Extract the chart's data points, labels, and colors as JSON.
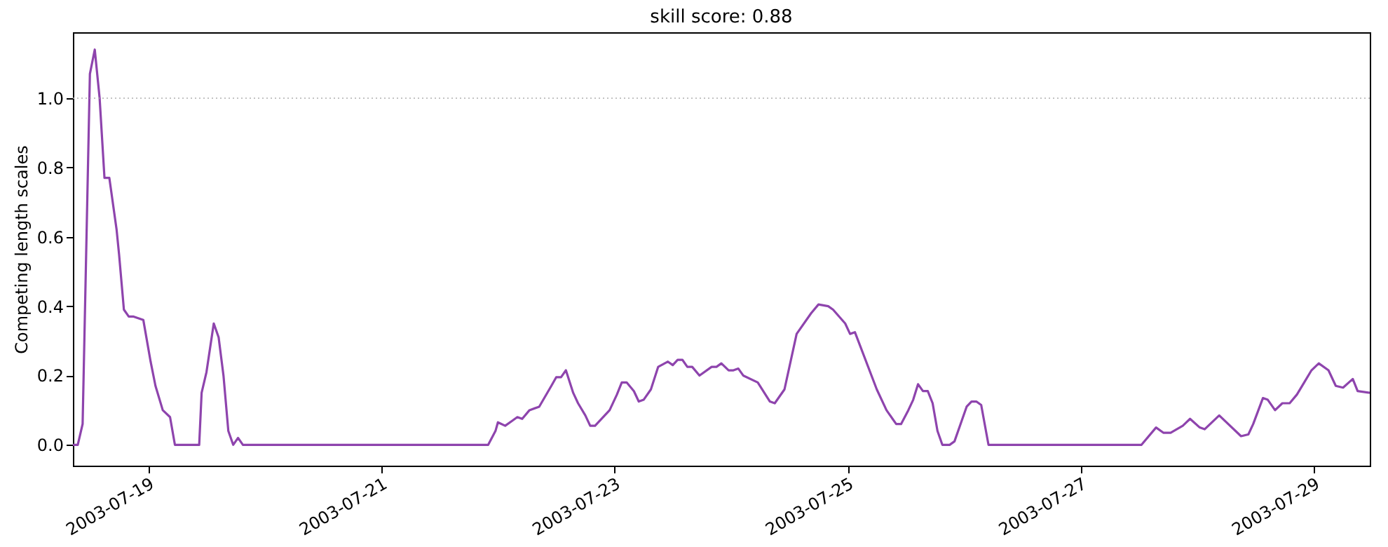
{
  "chart_data": {
    "type": "line",
    "title": "skill score: 0.88",
    "ylabel": "Competing length scales",
    "x": [
      "2003-07-18T08:30",
      "2003-07-18T09:30",
      "2003-07-18T10:30",
      "2003-07-18T12:00",
      "2003-07-18T13:00",
      "2003-07-18T14:00",
      "2003-07-18T15:00",
      "2003-07-18T16:00",
      "2003-07-18T17:30",
      "2003-07-18T18:00",
      "2003-07-18T19:00",
      "2003-07-18T20:00",
      "2003-07-18T21:00",
      "2003-07-18T23:00",
      "2003-07-19T00:30",
      "2003-07-19T01:30",
      "2003-07-19T03:00",
      "2003-07-19T04:30",
      "2003-07-19T05:30",
      "2003-07-19T10:30",
      "2003-07-19T11:00",
      "2003-07-19T12:00",
      "2003-07-19T13:30",
      "2003-07-19T14:30",
      "2003-07-19T15:30",
      "2003-07-19T16:30",
      "2003-07-19T17:30",
      "2003-07-19T18:30",
      "2003-07-19T19:30",
      "2003-07-21T22:00",
      "2003-07-21T23:30",
      "2003-07-22T00:00",
      "2003-07-22T01:30",
      "2003-07-22T03:00",
      "2003-07-22T04:00",
      "2003-07-22T05:00",
      "2003-07-22T06:30",
      "2003-07-22T08:30",
      "2003-07-22T11:00",
      "2003-07-22T12:00",
      "2003-07-22T13:00",
      "2003-07-22T14:00",
      "2003-07-22T15:30",
      "2003-07-22T16:30",
      "2003-07-22T18:00",
      "2003-07-22T19:00",
      "2003-07-22T20:00",
      "2003-07-22T23:00",
      "2003-07-23T00:30",
      "2003-07-23T01:30",
      "2003-07-23T02:30",
      "2003-07-23T04:00",
      "2003-07-23T05:00",
      "2003-07-23T06:00",
      "2003-07-23T07:30",
      "2003-07-23T09:00",
      "2003-07-23T11:00",
      "2003-07-23T12:00",
      "2003-07-23T13:00",
      "2003-07-23T14:00",
      "2003-07-23T15:00",
      "2003-07-23T16:00",
      "2003-07-23T17:30",
      "2003-07-23T20:00",
      "2003-07-23T21:00",
      "2003-07-23T22:00",
      "2003-07-23T23:30",
      "2003-07-24T00:30",
      "2003-07-24T01:30",
      "2003-07-24T02:30",
      "2003-07-24T05:30",
      "2003-07-24T08:00",
      "2003-07-24T09:00",
      "2003-07-24T11:00",
      "2003-07-24T13:30",
      "2003-07-24T16:30",
      "2003-07-24T18:00",
      "2003-07-24T20:00",
      "2003-07-24T21:00",
      "2003-07-24T23:30",
      "2003-07-25T00:30",
      "2003-07-25T01:30",
      "2003-07-25T06:00",
      "2003-07-25T08:00",
      "2003-07-25T10:00",
      "2003-07-25T11:00",
      "2003-07-25T12:30",
      "2003-07-25T13:30",
      "2003-07-25T14:30",
      "2003-07-25T15:30",
      "2003-07-25T16:30",
      "2003-07-25T17:30",
      "2003-07-25T18:30",
      "2003-07-25T19:30",
      "2003-07-25T21:00",
      "2003-07-25T22:00",
      "2003-07-25T23:30",
      "2003-07-26T00:30",
      "2003-07-26T01:30",
      "2003-07-26T02:30",
      "2003-07-26T03:30",
      "2003-07-26T05:00",
      "2003-07-27T12:30",
      "2003-07-27T15:30",
      "2003-07-27T17:00",
      "2003-07-27T18:30",
      "2003-07-27T21:00",
      "2003-07-27T22:30",
      "2003-07-28T00:30",
      "2003-07-28T01:30",
      "2003-07-28T04:30",
      "2003-07-28T09:00",
      "2003-07-28T10:30",
      "2003-07-28T11:30",
      "2003-07-28T13:30",
      "2003-07-28T14:30",
      "2003-07-28T16:00",
      "2003-07-28T17:30",
      "2003-07-28T19:00",
      "2003-07-28T20:30",
      "2003-07-28T22:00",
      "2003-07-28T23:30",
      "2003-07-29T01:00",
      "2003-07-29T03:00",
      "2003-07-29T04:30",
      "2003-07-29T06:00",
      "2003-07-29T08:00",
      "2003-07-29T09:00",
      "2003-07-29T11:30"
    ],
    "series": [
      {
        "color": "#8e44ad",
        "values": [
          0,
          0,
          0.06,
          1.07,
          1.14,
          1.0,
          0.77,
          0.77,
          0.62,
          0.55,
          0.39,
          0.37,
          0.37,
          0.36,
          0.24,
          0.17,
          0.1,
          0.08,
          0,
          0,
          0.15,
          0.21,
          0.35,
          0.31,
          0.2,
          0.04,
          0,
          0.02,
          0,
          0,
          0.04,
          0.065,
          0.055,
          0.07,
          0.08,
          0.075,
          0.1,
          0.11,
          0.17,
          0.195,
          0.195,
          0.215,
          0.15,
          0.12,
          0.085,
          0.055,
          0.055,
          0.1,
          0.145,
          0.18,
          0.18,
          0.155,
          0.125,
          0.13,
          0.16,
          0.225,
          0.24,
          0.23,
          0.245,
          0.245,
          0.225,
          0.225,
          0.2,
          0.225,
          0.225,
          0.235,
          0.215,
          0.215,
          0.22,
          0.2,
          0.18,
          0.125,
          0.12,
          0.16,
          0.32,
          0.38,
          0.405,
          0.4,
          0.39,
          0.35,
          0.32,
          0.325,
          0.16,
          0.1,
          0.06,
          0.06,
          0.1,
          0.13,
          0.175,
          0.155,
          0.155,
          0.12,
          0.04,
          0,
          0,
          0.01,
          0.07,
          0.11,
          0.125,
          0.125,
          0.115,
          0,
          0,
          0.05,
          0.035,
          0.035,
          0.055,
          0.075,
          0.05,
          0.045,
          0.085,
          0.025,
          0.03,
          0.06,
          0.135,
          0.13,
          0.1,
          0.12,
          0.12,
          0.145,
          0.18,
          0.215,
          0.235,
          0.215,
          0.17,
          0.165,
          0.19,
          0.155,
          0.15
        ]
      }
    ],
    "xlim": [
      "2003-07-18T08:30",
      "2003-07-29T11:30"
    ],
    "xticks": [
      "2003-07-19",
      "2003-07-21",
      "2003-07-23",
      "2003-07-25",
      "2003-07-27",
      "2003-07-29"
    ],
    "ylim": [
      -0.06,
      1.19
    ],
    "yticks": [
      {
        "value": 0,
        "label": "0.0"
      },
      {
        "value": 0.2,
        "label": "0.2"
      },
      {
        "value": 0.4,
        "label": "0.4"
      },
      {
        "value": 0.6,
        "label": "0.6"
      },
      {
        "value": 0.8,
        "label": "0.8"
      },
      {
        "value": 1.0,
        "label": "1.0"
      }
    ],
    "ref_lines": [
      {
        "axis": "y",
        "value": 1.0,
        "color": "#b0b0b0",
        "line_style": "dotted"
      }
    ],
    "grid": false,
    "marker": "none",
    "line_style": "solid"
  }
}
